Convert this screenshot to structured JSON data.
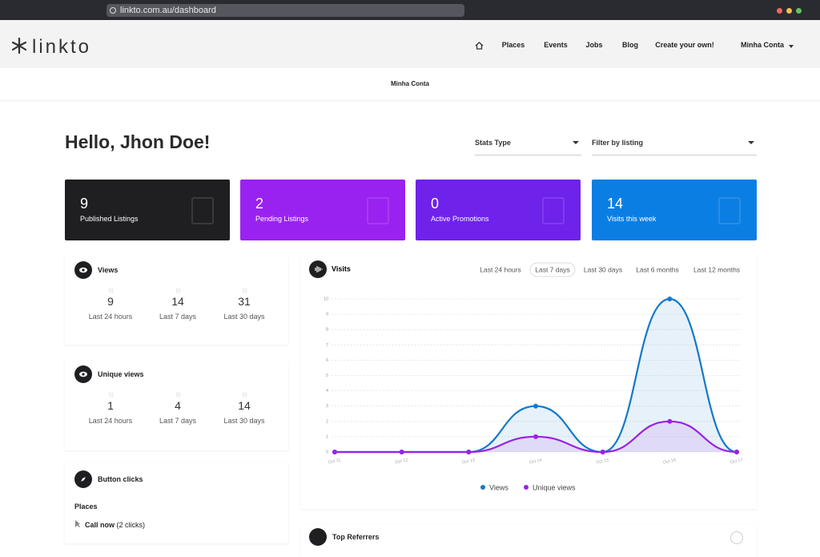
{
  "browser": {
    "url": "linkto.com.au/dashboard"
  },
  "nav": {
    "logo": "linkto",
    "links": [
      "Places",
      "Events",
      "Jobs",
      "Blog",
      "Create your own!"
    ],
    "account": "Minha Conta"
  },
  "breadcrumb": "Minha Conta",
  "greeting": "Hello, Jhon Doe!",
  "filters": [
    "Stats Type",
    "Filter by listing"
  ],
  "stat_cards": [
    {
      "value": 9,
      "label": "Published Listings",
      "color": "#1f1f22"
    },
    {
      "value": 2,
      "label": "Pending Listings",
      "color": "#9a22f0"
    },
    {
      "value": 0,
      "label": "Active Promotions",
      "color": "#6f22ea"
    },
    {
      "value": 14,
      "label": "Visits this week",
      "color": "#0b7ee3"
    }
  ],
  "views": {
    "title": "Views",
    "items": [
      {
        "value": 9,
        "label": "Last 24 hours"
      },
      {
        "value": 14,
        "label": "Last 7 days"
      },
      {
        "value": 31,
        "label": "Last 30 days"
      }
    ]
  },
  "unique_views": {
    "title": "Unique views",
    "items": [
      {
        "value": 1,
        "label": "Last 24 hours"
      },
      {
        "value": 4,
        "label": "Last 7 days"
      },
      {
        "value": 14,
        "label": "Last 30 days"
      }
    ]
  },
  "button_clicks": {
    "title": "Button clicks",
    "section": "Places",
    "item": "Call now",
    "count": "(2 clicks)"
  },
  "chart_data": {
    "type": "line",
    "title": "Visits",
    "ranges": [
      "Last 24 hours",
      "Last 7 days",
      "Last 30 days",
      "Last 6 months",
      "Last 12 months"
    ],
    "active_range": 1,
    "categories": [
      "Oct 11",
      "Oct 12",
      "Oct 13",
      "Oct 14",
      "Oct 15",
      "Oct 16",
      "Oct 17"
    ],
    "series": [
      {
        "name": "Views",
        "color": "#1479c9",
        "values": [
          0,
          0,
          0,
          3,
          0,
          10,
          0
        ]
      },
      {
        "name": "Unique views",
        "color": "#9a22e6",
        "values": [
          0,
          0,
          0,
          1,
          0,
          2,
          0
        ]
      }
    ],
    "ylim": [
      0,
      10
    ],
    "yticks": [
      0,
      1,
      2,
      3,
      4,
      5,
      6,
      7,
      8,
      9,
      10
    ],
    "grid": true,
    "legend": "bottom"
  },
  "top_referrers": {
    "title": "Top Referrers"
  }
}
